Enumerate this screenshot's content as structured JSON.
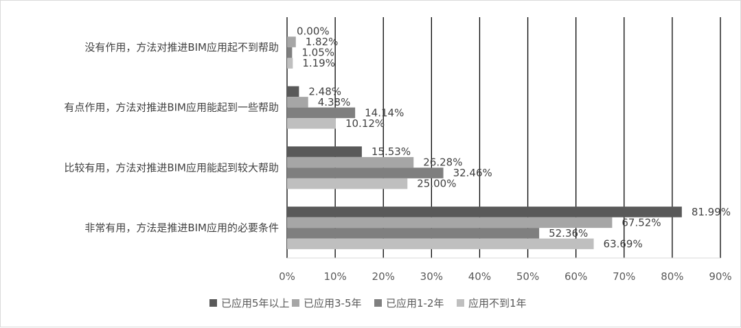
{
  "chart_data": {
    "type": "bar",
    "orientation": "horizontal",
    "categories": [
      "非常有用，方法是推进BIM应用的必要条件",
      "比较有用，方法对推进BIM应用能起到较大帮助",
      "有点作用，方法对推进BIM应用能起到一些帮助",
      "没有作用，方法对推进BIM应用起不到帮助"
    ],
    "series": [
      {
        "name": "已应用5年以上",
        "color": "#595959",
        "values": [
          81.99,
          15.53,
          2.48,
          0.0
        ],
        "labels": [
          "81.99%",
          "15.53%",
          "2.48%",
          "0.00%"
        ]
      },
      {
        "name": "已应用3-5年",
        "color": "#a6a6a6",
        "values": [
          67.52,
          26.28,
          4.38,
          1.82
        ],
        "labels": [
          "67.52%",
          "26.28%",
          "4.38%",
          "1.82%"
        ]
      },
      {
        "name": "已应用1-2年",
        "color": "#7f7f7f",
        "values": [
          52.36,
          32.46,
          14.14,
          1.05
        ],
        "labels": [
          "52.36%",
          "32.46%",
          "14.14%",
          "1.05%"
        ]
      },
      {
        "name": "应用不到1年",
        "color": "#bfbfbf",
        "values": [
          63.69,
          25.0,
          10.12,
          1.19
        ],
        "labels": [
          "63.69%",
          "25.00%",
          "10.12%",
          "1.19%"
        ]
      }
    ],
    "x_ticks": [
      "0%",
      "10%",
      "20%",
      "30%",
      "40%",
      "50%",
      "60%",
      "70%",
      "80%",
      "90%"
    ],
    "xlim": [
      0,
      90
    ],
    "grid": true,
    "legend_position": "bottom",
    "title": "",
    "xlabel": "",
    "ylabel": ""
  }
}
